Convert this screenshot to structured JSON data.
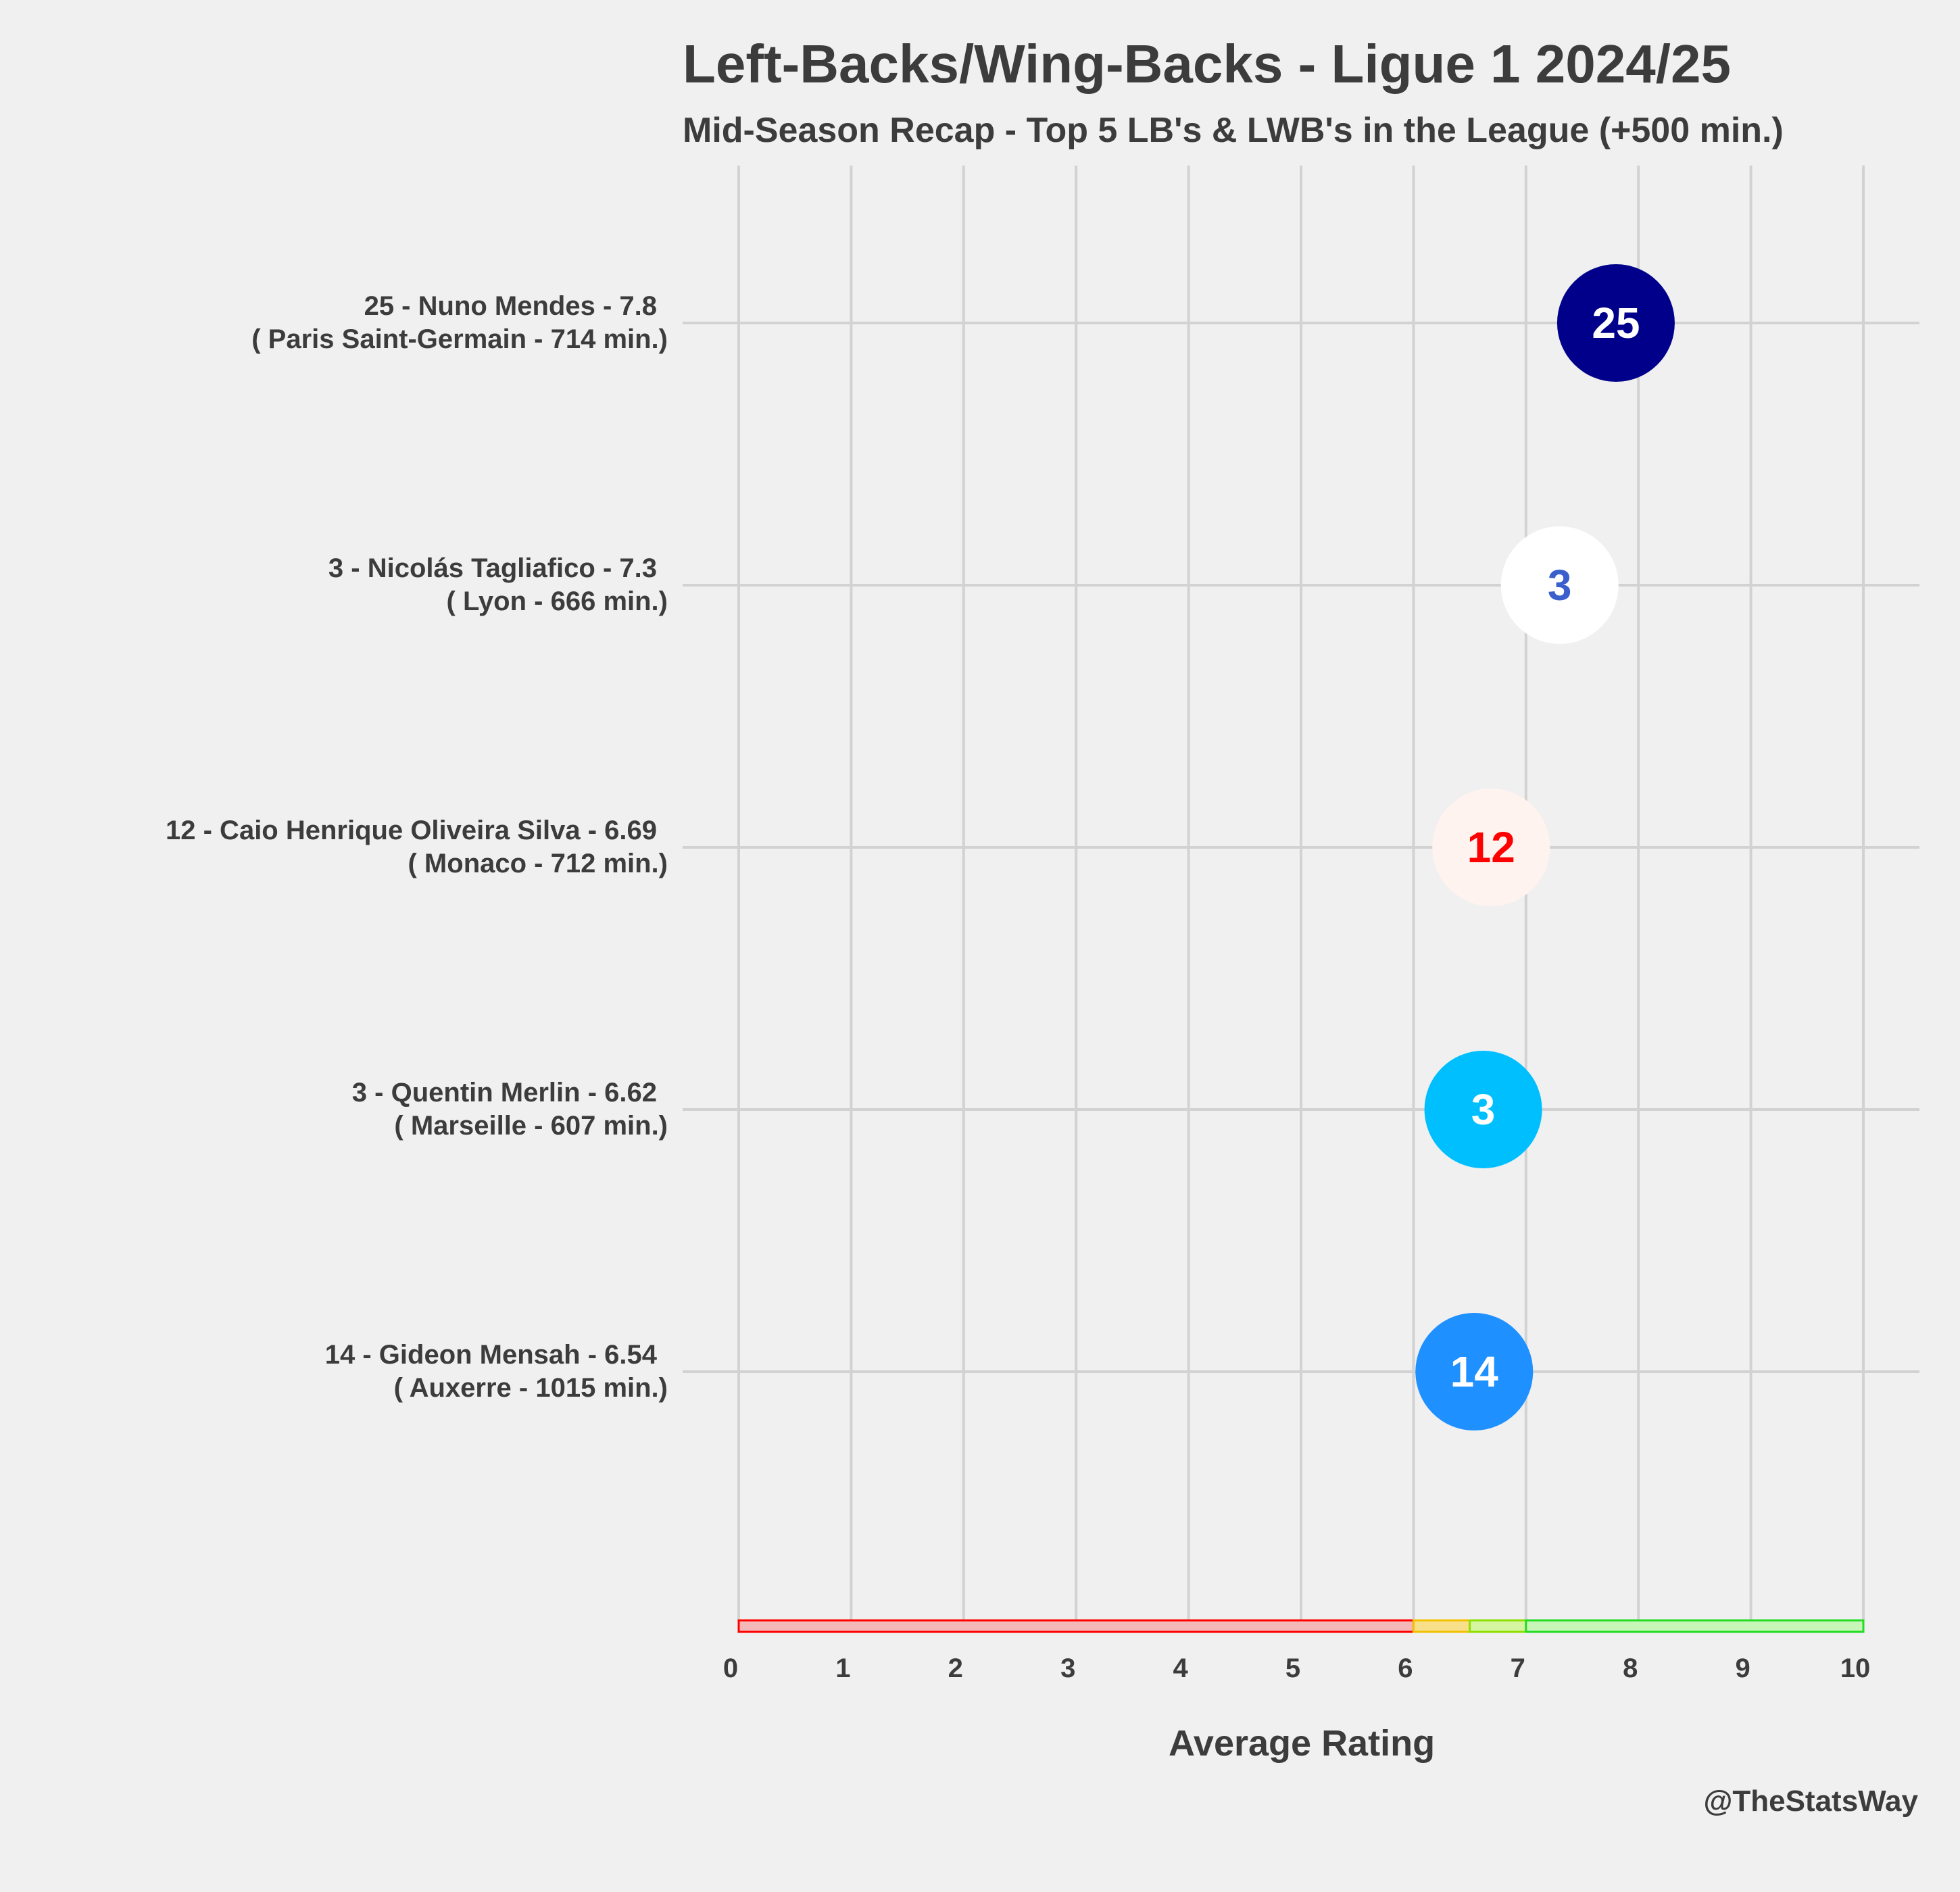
{
  "chart_data": {
    "type": "scatter",
    "title": "Left-Backs/Wing-Backs - Ligue 1 2024/25",
    "subtitle": "Mid-Season Recap - Top 5 LB's & LWB's in the League (+500 min.)",
    "xlabel": "Average Rating",
    "ylabel": "",
    "xlim": [
      0,
      10
    ],
    "xticks": [
      "0",
      "1",
      "2",
      "3",
      "4",
      "5",
      "6",
      "7",
      "8",
      "9",
      "10"
    ],
    "grid": true,
    "credit": "@TheStatsWay",
    "rating_bands": [
      {
        "from": 0,
        "to": 6,
        "fill": "#f4b8b8",
        "stroke": "#ff0000"
      },
      {
        "from": 6,
        "to": 6.5,
        "fill": "#f8e08a",
        "stroke": "#f2c200"
      },
      {
        "from": 6.5,
        "to": 7,
        "fill": "#d6f5a0",
        "stroke": "#8ee000"
      },
      {
        "from": 7,
        "to": 10,
        "fill": "#c8f5b8",
        "stroke": "#22dd22"
      }
    ],
    "players": [
      {
        "number": "25",
        "label_line1": "25 - Nuno Mendes - 7.8",
        "label_line2": "( Paris Saint-Germain - 714 min.)",
        "rating": 7.8,
        "fill": "#00008b",
        "text_color": "#ffffff"
      },
      {
        "number": "3",
        "label_line1": "3 - Nicolás Tagliafico - 7.3",
        "label_line2": "( Lyon - 666 min.)",
        "rating": 7.3,
        "fill": "#ffffff",
        "text_color": "#3a5fcd"
      },
      {
        "number": "12",
        "label_line1": "12 - Caio Henrique Oliveira Silva - 6.69",
        "label_line2": "( Monaco - 712 min.)",
        "rating": 6.69,
        "fill": "#fff3ef",
        "text_color": "#ff0000"
      },
      {
        "number": "3",
        "label_line1": "3 - Quentin Merlin - 6.62",
        "label_line2": "( Marseille - 607 min.)",
        "rating": 6.62,
        "fill": "#00bfff",
        "text_color": "#ffffff"
      },
      {
        "number": "14",
        "label_line1": "14 - Gideon Mensah - 6.54",
        "label_line2": "( Auxerre - 1015 min.)",
        "rating": 6.54,
        "fill": "#1e90ff",
        "text_color": "#ffffff"
      }
    ]
  }
}
